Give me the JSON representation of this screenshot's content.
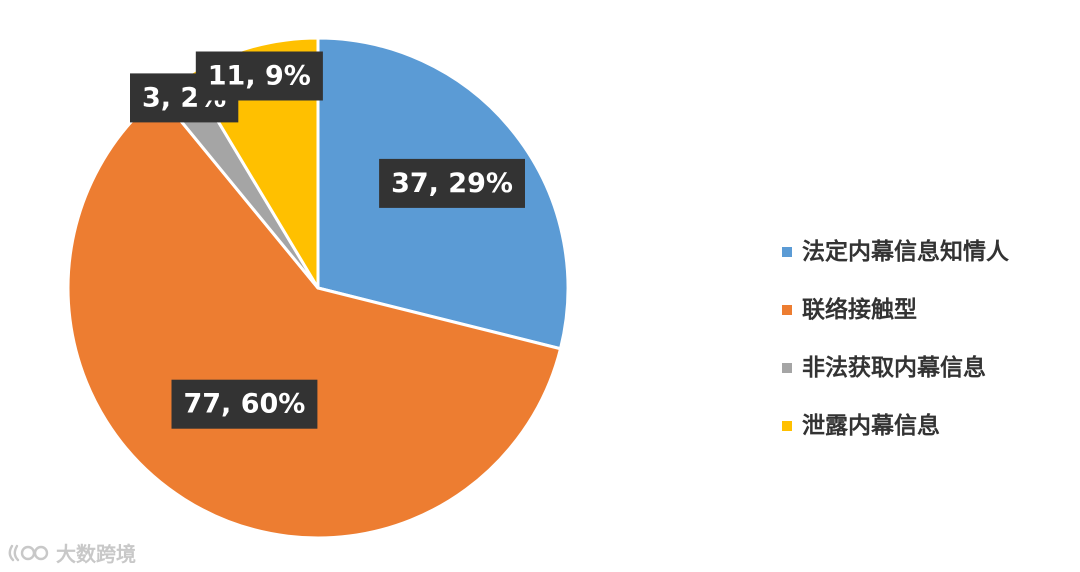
{
  "chart_data": {
    "type": "pie",
    "title": "",
    "start_angle": "12 o'clock, clockwise",
    "legend_position": "right",
    "slices": [
      {
        "name": "法定内幕信息知情人",
        "value": 37,
        "percent": "29%",
        "label": "37, 29%",
        "color": "#5B9BD5"
      },
      {
        "name": "联络接触型",
        "value": 77,
        "percent": "60%",
        "label": "77, 60%",
        "color": "#ED7D31"
      },
      {
        "name": "非法获取内幕信息",
        "value": 3,
        "percent": "2%",
        "label": "3, 2%",
        "color": "#A5A5A5"
      },
      {
        "name": "泄露内幕信息",
        "value": 11,
        "percent": "9%",
        "label": "11, 9%",
        "color": "#FFC000"
      }
    ]
  },
  "watermark": {
    "text": "大数跨境",
    "icon": "brand-logo-icon"
  }
}
